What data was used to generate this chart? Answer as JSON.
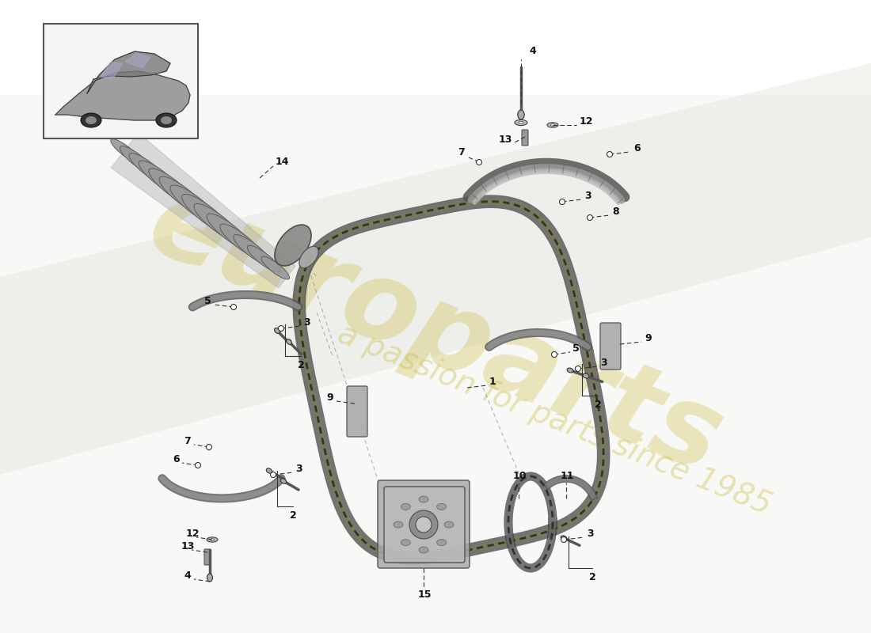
{
  "background_color": "#ffffff",
  "watermark_text1": "europarts",
  "watermark_text2": "a passion for parts since 1985",
  "watermark_color": "#c8b830",
  "watermark_alpha": 0.3,
  "bg_stripe_color": "#d8d8d8",
  "bg_stripe_alpha": 0.35,
  "label_fontsize": 9,
  "label_color": "#111111",
  "line_color": "#333333",
  "line_width": 0.8
}
